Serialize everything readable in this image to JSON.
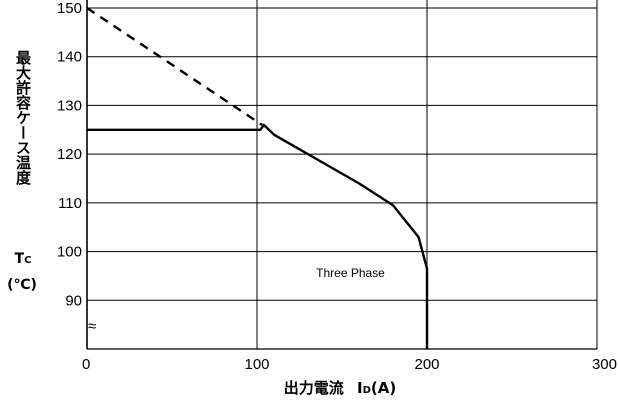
{
  "chart_data": {
    "type": "line",
    "x_ticks": [
      "0",
      "100",
      "200",
      "300"
    ],
    "y_ticks": [
      "150",
      "140",
      "130",
      "120",
      "110",
      "100",
      "90"
    ],
    "axis_break": "≈",
    "xlim": [
      0,
      300
    ],
    "ylim": [
      80,
      150
    ],
    "grid": true,
    "xlabel": {
      "main": "出力電流",
      "symbol": "I",
      "subscript": "D",
      "unit": "(A)"
    },
    "ylabel": {
      "main": "最大許容ケース温度",
      "symbol": "T",
      "subscript": "C",
      "unit": "(℃)"
    },
    "series": [
      {
        "style": "dashed",
        "x": [
          0,
          103
        ],
        "y": [
          150,
          126
        ]
      },
      {
        "style": "solid",
        "x": [
          0,
          102,
          104,
          110,
          120,
          140,
          160,
          180,
          195,
          200,
          200
        ],
        "y": [
          125,
          125,
          126,
          124,
          122,
          118,
          114,
          109.5,
          103,
          96.5,
          80
        ]
      }
    ],
    "annotations": [
      {
        "text": "Three Phase",
        "x": 155,
        "y": 94
      }
    ]
  }
}
